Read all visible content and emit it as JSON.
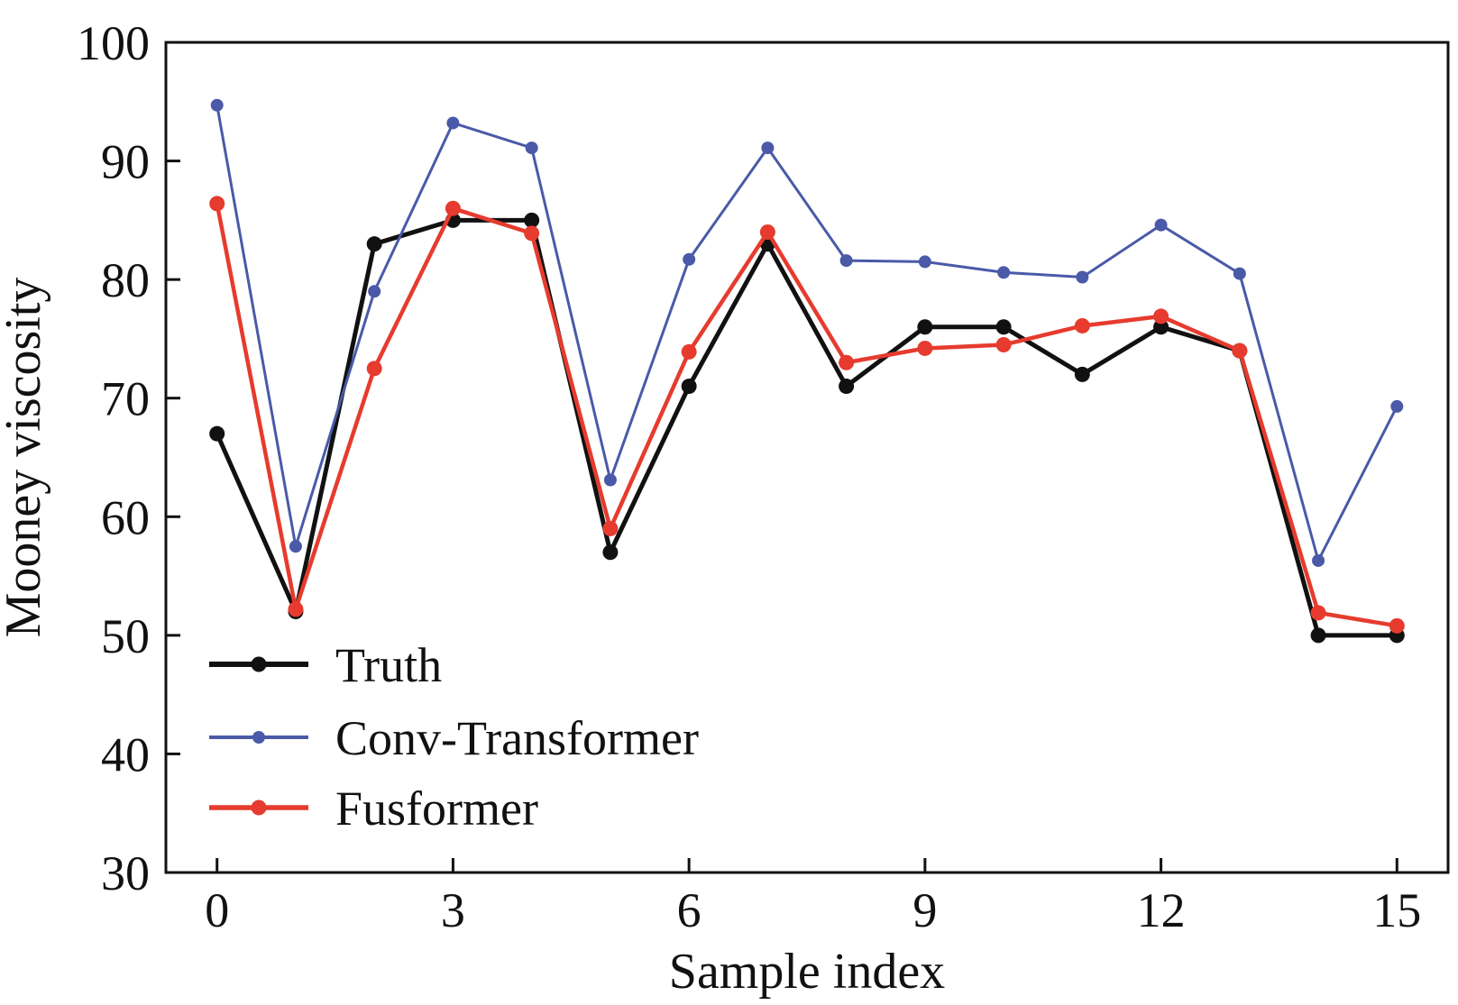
{
  "chart_data": {
    "type": "line",
    "xlabel": "Sample index",
    "ylabel": "Mooney viscosity",
    "xlim": [
      -0.65,
      15.65
    ],
    "ylim": [
      30,
      100
    ],
    "xticks": [
      0,
      3,
      6,
      9,
      12,
      15
    ],
    "xtick_labels": [
      "0",
      "3",
      "6",
      "9",
      "12",
      "15"
    ],
    "yticks": [
      30,
      40,
      50,
      60,
      70,
      80,
      90,
      100
    ],
    "ytick_labels": [
      "30",
      "40",
      "50",
      "60",
      "70",
      "80",
      "90",
      "100"
    ],
    "grid": false,
    "legend_position": "bottom-left",
    "x": [
      0,
      1,
      2,
      3,
      4,
      5,
      6,
      7,
      8,
      9,
      10,
      11,
      12,
      13,
      14,
      15
    ],
    "series": [
      {
        "name": "Truth",
        "color": "#111111",
        "values": [
          67,
          52,
          83,
          85,
          85,
          57,
          71,
          83,
          71,
          76,
          76,
          72,
          76,
          74,
          50,
          50
        ]
      },
      {
        "name": "Conv-Transformer",
        "color": "#4a5aa8",
        "values": [
          94.7,
          57.5,
          79,
          93.2,
          91.1,
          63.1,
          81.7,
          91.1,
          81.6,
          81.5,
          80.6,
          80.2,
          84.6,
          80.5,
          56.3,
          69.3
        ]
      },
      {
        "name": "Fusformer",
        "color": "#e63b2e",
        "values": [
          86.4,
          52.2,
          72.5,
          86,
          83.9,
          59,
          73.9,
          84,
          73,
          74.2,
          74.5,
          76.1,
          76.9,
          74,
          51.9,
          50.8
        ]
      }
    ]
  }
}
